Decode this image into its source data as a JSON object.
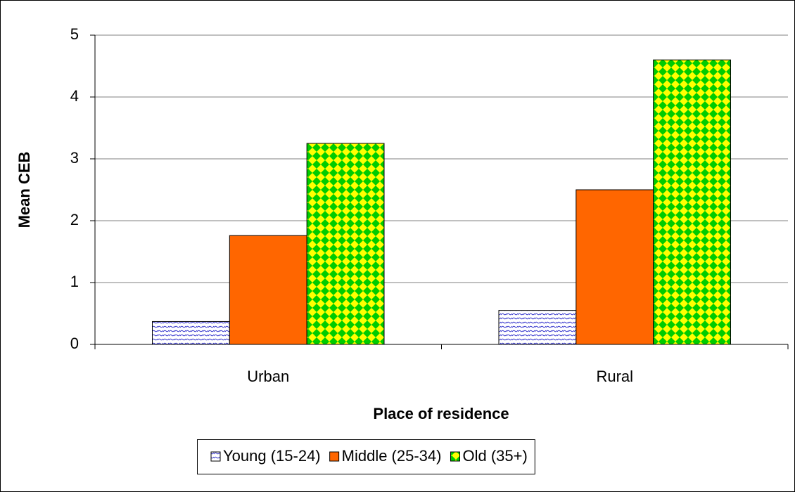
{
  "chart_data": {
    "type": "bar",
    "x_label": "Place of residence",
    "y_label": "Mean CEB",
    "categories": [
      "Urban",
      "Rural"
    ],
    "series": [
      {
        "name": "Young (15-24)",
        "color": "#3333cc",
        "values": [
          0.37,
          0.55
        ]
      },
      {
        "name": "Middle (25-34)",
        "color": "#ff6600",
        "values": [
          1.76,
          2.5
        ]
      },
      {
        "name": "Old (35+)",
        "color": "#00cc00",
        "values": [
          3.25,
          4.6
        ]
      }
    ],
    "ylim": [
      0,
      5
    ],
    "yticks": [
      0,
      1,
      2,
      3,
      4,
      5
    ],
    "grid": true,
    "legend": "bottom"
  }
}
